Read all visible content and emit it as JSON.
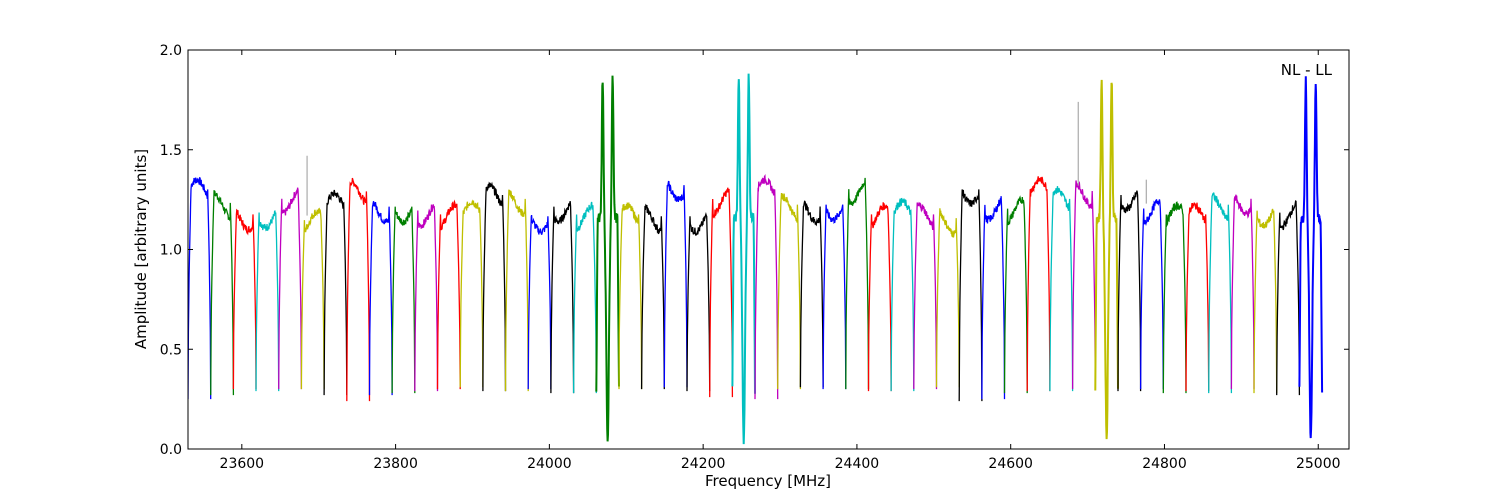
{
  "chart_data": {
    "type": "line",
    "title": "",
    "annotation": "NL - LL",
    "xlabel": "Frequency [MHz]",
    "ylabel": "Amplitude [arbitrary units]",
    "xlim": [
      23530,
      25040
    ],
    "ylim": [
      0.0,
      2.0
    ],
    "x_ticks": [
      23600,
      23800,
      24000,
      24200,
      24400,
      24600,
      24800,
      25000
    ],
    "y_ticks": [
      0.0,
      0.5,
      1.0,
      1.5,
      2.0
    ],
    "y_tick_labels": [
      "0.0",
      "0.5",
      "1.0",
      "1.5",
      "2.0"
    ],
    "grid": false,
    "legend": "none",
    "colors": [
      "#0000ff",
      "#007f00",
      "#ff0000",
      "#00bfbf",
      "#bf00bf",
      "#bfbf00",
      "#000000"
    ],
    "segment_start": 23530,
    "segment_width": 29.5,
    "segments": [
      {
        "color": 0,
        "peak": 1.33,
        "floor": 0.25
      },
      {
        "color": 1,
        "peak": 1.26,
        "floor": 0.27
      },
      {
        "color": 2,
        "peak": 1.2,
        "floor": 0.3
      },
      {
        "color": 3,
        "peak": 1.21,
        "floor": 0.29
      },
      {
        "color": 4,
        "peak": 1.28,
        "floor": 0.3
      },
      {
        "color": 5,
        "peak": 1.17,
        "floor": 0.3,
        "spike": 1.47
      },
      {
        "color": 6,
        "peak": 1.26,
        "floor": 0.27
      },
      {
        "color": 2,
        "peak": 1.32,
        "floor": 0.24
      },
      {
        "color": 0,
        "peak": 1.24,
        "floor": 0.27
      },
      {
        "color": 1,
        "peak": 1.24,
        "floor": 0.28
      },
      {
        "color": 4,
        "peak": 1.22,
        "floor": 0.29
      },
      {
        "color": 2,
        "peak": 1.2,
        "floor": 0.3
      },
      {
        "color": 5,
        "peak": 1.22,
        "floor": 0.31
      },
      {
        "color": 6,
        "peak": 1.3,
        "floor": 0.29
      },
      {
        "color": 5,
        "peak": 1.28,
        "floor": 0.29
      },
      {
        "color": 0,
        "peak": 1.19,
        "floor": 0.3
      },
      {
        "color": 6,
        "peak": 1.24,
        "floor": 0.28
      },
      {
        "color": 3,
        "peak": 1.2,
        "floor": 0.28
      },
      {
        "color": 1,
        "peak": 1.86,
        "floor": 0.04,
        "strong": true
      },
      {
        "color": 5,
        "peak": 1.2,
        "floor": 0.3
      },
      {
        "color": 6,
        "peak": 1.19,
        "floor": 0.3
      },
      {
        "color": 0,
        "peak": 1.35,
        "floor": 0.31
      },
      {
        "color": 6,
        "peak": 1.19,
        "floor": 0.29
      },
      {
        "color": 2,
        "peak": 1.28,
        "floor": 0.26
      },
      {
        "color": 3,
        "peak": 1.87,
        "floor": 0.04,
        "strong": true
      },
      {
        "color": 4,
        "peak": 1.33,
        "floor": 0.25
      },
      {
        "color": 5,
        "peak": 1.25,
        "floor": 0.3
      },
      {
        "color": 6,
        "peak": 1.24,
        "floor": 0.31
      },
      {
        "color": 0,
        "peak": 1.25,
        "floor": 0.3
      },
      {
        "color": 1,
        "peak": 1.33,
        "floor": 0.3
      },
      {
        "color": 2,
        "peak": 1.2,
        "floor": 0.29
      },
      {
        "color": 3,
        "peak": 1.22,
        "floor": 0.29
      },
      {
        "color": 4,
        "peak": 1.2,
        "floor": 0.3
      },
      {
        "color": 5,
        "peak": 1.18,
        "floor": 0.31
      },
      {
        "color": 6,
        "peak": 1.33,
        "floor": 0.24
      },
      {
        "color": 0,
        "peak": 1.25,
        "floor": 0.25
      },
      {
        "color": 1,
        "peak": 1.23,
        "floor": 0.28
      },
      {
        "color": 2,
        "peak": 1.33,
        "floor": 0.29
      },
      {
        "color": 3,
        "peak": 1.28,
        "floor": 0.29
      },
      {
        "color": 4,
        "peak": 1.32,
        "floor": 0.3,
        "spike": 1.74
      },
      {
        "color": 5,
        "peak": 1.85,
        "floor": 0.06,
        "strong": true
      },
      {
        "color": 6,
        "peak": 1.3,
        "floor": 0.29
      },
      {
        "color": 0,
        "peak": 1.23,
        "floor": 0.3,
        "spike": 1.35
      },
      {
        "color": 1,
        "peak": 1.2,
        "floor": 0.28
      },
      {
        "color": 2,
        "peak": 1.2,
        "floor": 0.29
      },
      {
        "color": 3,
        "peak": 1.25,
        "floor": 0.28
      },
      {
        "color": 4,
        "peak": 1.28,
        "floor": 0.3
      },
      {
        "color": 5,
        "peak": 1.22,
        "floor": 0.28
      },
      {
        "color": 6,
        "peak": 1.21,
        "floor": 0.27
      },
      {
        "color": 0,
        "peak": 1.85,
        "floor": 0.04,
        "strong": true
      }
    ]
  }
}
